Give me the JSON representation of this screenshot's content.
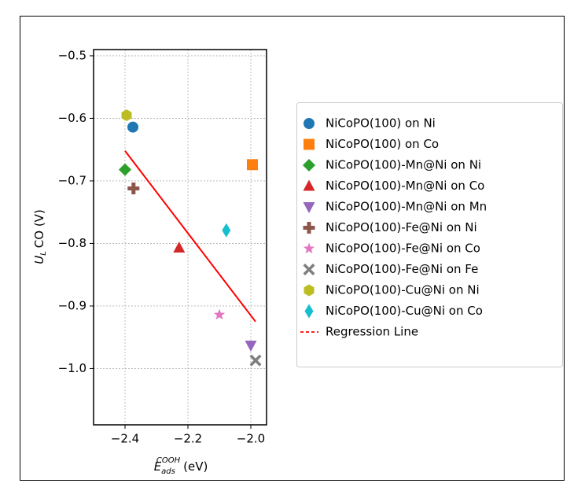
{
  "chart_data": {
    "type": "scatter",
    "xlabel": {
      "base": "E",
      "sub": "ads",
      "sup": "COOH",
      "unit": "(eV)"
    },
    "ylabel": {
      "base": "U",
      "sub": "L",
      "unit": "CO (V)"
    },
    "xlim": [
      -2.5,
      -1.95
    ],
    "ylim": [
      -1.09,
      -0.49
    ],
    "xticks": [
      {
        "value": -2.4,
        "label": "−2.4"
      },
      {
        "value": -2.2,
        "label": "−2.2"
      },
      {
        "value": -2,
        "label": "−2.0"
      }
    ],
    "yticks": [
      {
        "value": -0.5,
        "label": "−0.5"
      },
      {
        "value": -0.6,
        "label": "−0.6"
      },
      {
        "value": -0.7,
        "label": "−0.7"
      },
      {
        "value": -0.8,
        "label": "−0.8"
      },
      {
        "value": -0.9,
        "label": "−0.9"
      },
      {
        "value": -1,
        "label": "−1.0"
      }
    ],
    "grid": true,
    "series": [
      {
        "name": "NiCoPO(100) on Ni",
        "color": "#1f77b4",
        "marker": "circle",
        "x": [
          -2.375
        ],
        "y": [
          -0.614
        ]
      },
      {
        "name": "NiCoPO(100) on Co",
        "color": "#ff7f0e",
        "marker": "square",
        "x": [
          -1.995
        ],
        "y": [
          -0.674
        ]
      },
      {
        "name": "NiCoPO(100)-Mn@Ni on Ni",
        "color": "#2ca02c",
        "marker": "diamond",
        "x": [
          -2.4
        ],
        "y": [
          -0.682
        ]
      },
      {
        "name": "NiCoPO(100)-Mn@Ni on Co",
        "color": "#d62728",
        "marker": "triangle-up",
        "x": [
          -2.228
        ],
        "y": [
          -0.807
        ]
      },
      {
        "name": "NiCoPO(100)-Mn@Ni on Mn",
        "color": "#9467bd",
        "marker": "triangle-down",
        "x": [
          -2.0
        ],
        "y": [
          -0.963
        ]
      },
      {
        "name": "NiCoPO(100)-Fe@Ni on Ni",
        "color": "#8c564b",
        "marker": "plus",
        "x": [
          -2.373
        ],
        "y": [
          -0.712
        ]
      },
      {
        "name": "NiCoPO(100)-Fe@Ni on Co",
        "color": "#e377c2",
        "marker": "star",
        "x": [
          -2.1
        ],
        "y": [
          -0.914
        ]
      },
      {
        "name": "NiCoPO(100)-Fe@Ni on Fe",
        "color": "#7f7f7f",
        "marker": "x",
        "x": [
          -1.985
        ],
        "y": [
          -0.987
        ]
      },
      {
        "name": "NiCoPO(100)-Cu@Ni on Ni",
        "color": "#bcbd22",
        "marker": "hexagon",
        "x": [
          -2.395
        ],
        "y": [
          -0.595
        ]
      },
      {
        "name": "NiCoPO(100)-Cu@Ni on Co",
        "color": "#17becf",
        "marker": "thin-diamond",
        "x": [
          -2.078
        ],
        "y": [
          -0.779
        ]
      }
    ],
    "regression": {
      "name": "Regression Line",
      "color": "#ff0000",
      "x": [
        -2.4,
        -1.985
      ],
      "y": [
        -0.652,
        -0.925
      ]
    }
  }
}
